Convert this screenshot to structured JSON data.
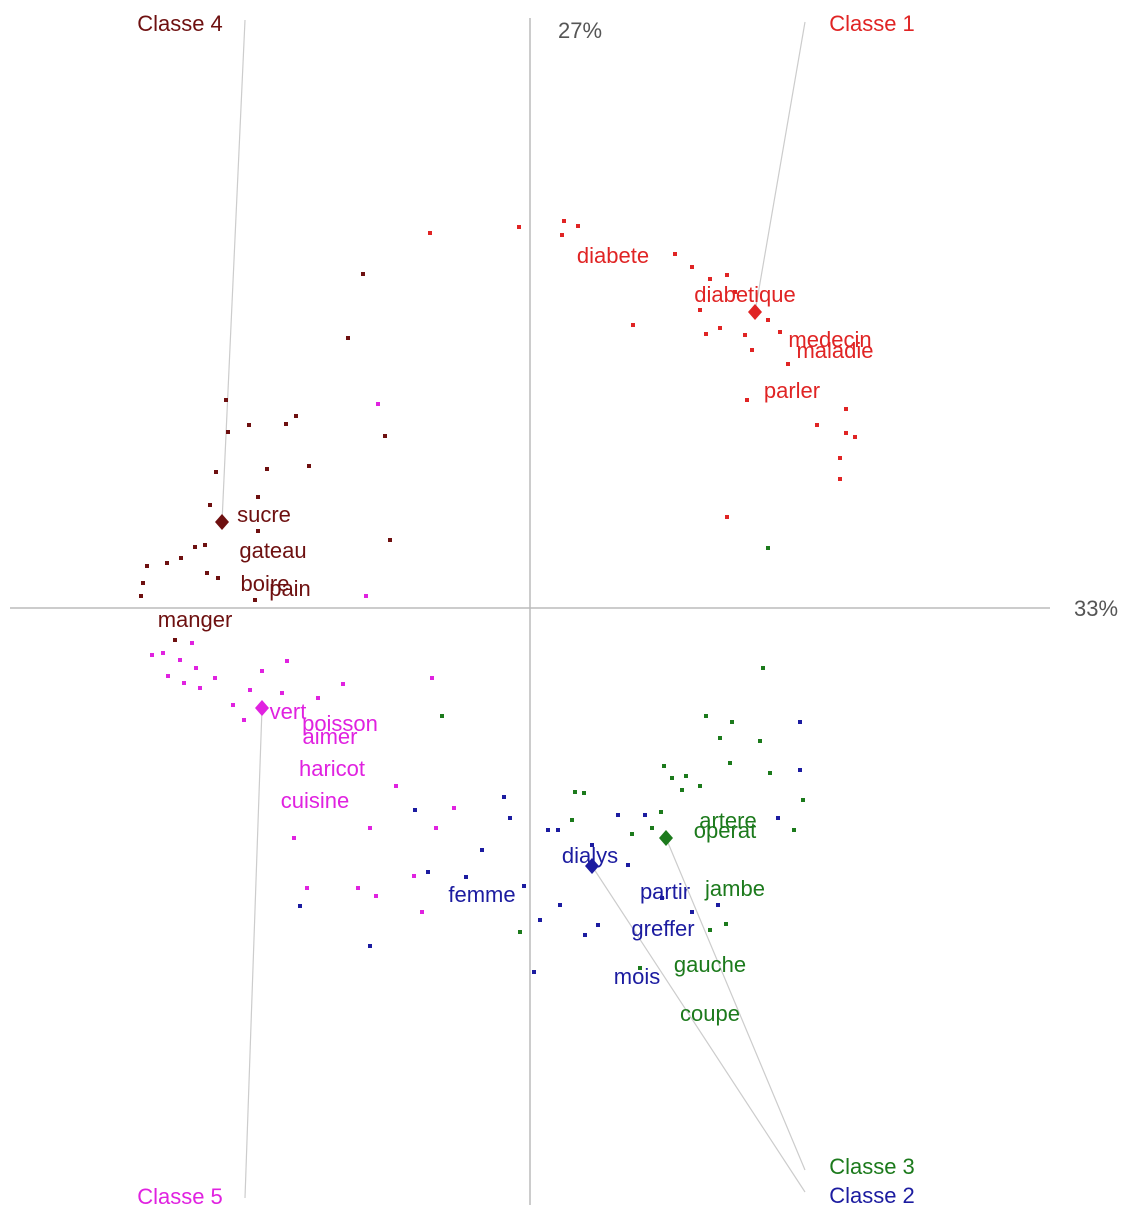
{
  "chart_data": {
    "type": "scatter",
    "xlabel": "33%",
    "ylabel": "27%",
    "xlim": [
      -5.2,
      5.2
    ],
    "ylim": [
      -5.97,
      5.9
    ],
    "series": [
      {
        "name": "Classe 1",
        "color": "#e02424",
        "centroid": [
          2.25,
          2.96
        ],
        "words": [
          {
            "text": "diabete",
            "x": 0.83,
            "y": 3.51
          },
          {
            "text": "diabetique",
            "x": 2.15,
            "y": 3.12
          },
          {
            "text": "medecin",
            "x": 3.0,
            "y": 2.67
          },
          {
            "text": "maladie",
            "x": 3.05,
            "y": 2.56
          },
          {
            "text": "parler",
            "x": 2.62,
            "y": 2.16
          }
        ],
        "x": [
          -1.0,
          -0.11,
          0.34,
          0.48,
          0.32,
          1.45,
          1.62,
          1.8,
          1.97,
          2.05,
          1.7,
          1.9,
          1.76,
          1.03,
          2.15,
          2.22,
          2.38,
          2.5,
          2.58,
          2.17,
          3.16,
          2.87,
          3.16,
          3.25,
          3.1,
          3.1,
          1.97
        ],
        "y": [
          3.75,
          3.81,
          3.87,
          3.82,
          3.73,
          3.54,
          3.41,
          3.29,
          3.33,
          3.16,
          2.98,
          2.8,
          2.74,
          2.83,
          2.73,
          2.58,
          2.88,
          2.76,
          2.44,
          2.08,
          1.99,
          1.83,
          1.75,
          1.71,
          1.5,
          1.29,
          0.91
        ]
      },
      {
        "name": "Classe 2",
        "color": "#1c1ca0",
        "centroid": [
          0.62,
          -2.58
        ],
        "words": [
          {
            "text": "dialys",
            "x": 0.6,
            "y": -2.49
          },
          {
            "text": "femme",
            "x": -0.48,
            "y": -2.88
          },
          {
            "text": "partir",
            "x": 1.35,
            "y": -2.85
          },
          {
            "text": "greffer",
            "x": 1.33,
            "y": -3.22
          },
          {
            "text": "mois",
            "x": 1.07,
            "y": -3.7
          }
        ],
        "x": [
          -0.26,
          -0.2,
          -0.48,
          -1.15,
          -1.02,
          -0.64,
          -0.06,
          0.1,
          0.3,
          0.55,
          0.68,
          0.04,
          0.18,
          0.28,
          0.62,
          0.88,
          1.15,
          0.98,
          1.32,
          1.62,
          1.88,
          2.48,
          2.7,
          2.7,
          -1.6,
          -2.3
        ],
        "y": [
          -1.89,
          -2.1,
          -2.42,
          -2.02,
          -2.64,
          -2.69,
          -2.78,
          -3.12,
          -2.97,
          -3.27,
          -3.17,
          -3.64,
          -2.22,
          -2.22,
          -2.37,
          -2.07,
          -2.07,
          -2.57,
          -2.9,
          -3.04,
          -2.97,
          -2.1,
          -1.14,
          -1.62,
          -3.38,
          -2.98
        ]
      },
      {
        "name": "Classe 3",
        "color": "#1c7a1c",
        "centroid": [
          1.36,
          -2.3
        ],
        "words": [
          {
            "text": "artere",
            "x": 1.98,
            "y": -2.14
          },
          {
            "text": "operat",
            "x": 1.95,
            "y": -2.24
          },
          {
            "text": "jambe",
            "x": 2.05,
            "y": -2.82
          },
          {
            "text": "gauche",
            "x": 1.8,
            "y": -3.58
          },
          {
            "text": "coupe",
            "x": 1.8,
            "y": -4.07
          }
        ],
        "x": [
          2.38,
          2.33,
          -0.88,
          1.76,
          2.02,
          1.9,
          2.3,
          1.34,
          1.42,
          1.56,
          1.7,
          1.52,
          2.0,
          2.4,
          2.73,
          2.64,
          1.31,
          1.22,
          1.02,
          0.45,
          0.54,
          0.42,
          -0.1,
          1.96,
          1.8,
          1.1
        ],
        "y": [
          0.6,
          -0.6,
          -1.08,
          -1.08,
          -1.14,
          -1.3,
          -1.33,
          -1.58,
          -1.7,
          -1.68,
          -1.78,
          -1.82,
          -1.55,
          -1.65,
          -1.92,
          -2.22,
          -2.04,
          -2.2,
          -2.26,
          -1.84,
          -1.85,
          -2.12,
          -3.24,
          -3.16,
          -3.22,
          -3.6
        ]
      },
      {
        "name": "Classe 4",
        "color": "#6e1010",
        "centroid": [
          -3.08,
          0.86
        ],
        "words": [
          {
            "text": "sucre",
            "x": -2.66,
            "y": 0.92
          },
          {
            "text": "gateau",
            "x": -2.57,
            "y": 0.56
          },
          {
            "text": "boire",
            "x": -2.65,
            "y": 0.23
          },
          {
            "text": "pain",
            "x": -2.4,
            "y": 0.18
          },
          {
            "text": "manger",
            "x": -3.35,
            "y": -0.13
          }
        ],
        "x": [
          -1.67,
          -1.82,
          -3.04,
          -2.81,
          -2.44,
          -2.34,
          -3.02,
          -1.45,
          -2.63,
          -2.21,
          -3.14,
          -3.2,
          -2.72,
          -3.25,
          -3.35,
          -3.49,
          -3.63,
          -3.83,
          -3.87,
          -3.89,
          -3.23,
          -3.12,
          -2.72,
          -1.4,
          -2.75,
          -3.55
        ],
        "y": [
          3.34,
          2.7,
          2.08,
          1.83,
          1.84,
          1.92,
          1.76,
          1.72,
          1.39,
          1.42,
          1.36,
          1.03,
          1.11,
          0.63,
          0.61,
          0.5,
          0.45,
          0.42,
          0.25,
          0.12,
          0.35,
          0.3,
          0.77,
          0.68,
          0.08,
          -0.32
        ]
      },
      {
        "name": "Classe 5",
        "color": "#e022e0",
        "centroid": [
          -2.68,
          -1.0
        ],
        "words": [
          {
            "text": "vert",
            "x": -2.42,
            "y": -1.05
          },
          {
            "text": "poisson",
            "x": -1.9,
            "y": -1.17
          },
          {
            "text": "aimer",
            "x": -2.0,
            "y": -1.3
          },
          {
            "text": "haricot",
            "x": -1.98,
            "y": -1.62
          },
          {
            "text": "cuisine",
            "x": -2.15,
            "y": -1.94
          }
        ],
        "x": [
          -1.52,
          -1.64,
          -3.78,
          -3.67,
          -3.5,
          -3.38,
          -3.34,
          -3.62,
          -3.46,
          -3.3,
          -3.15,
          -2.68,
          -2.43,
          -2.8,
          -2.97,
          -2.86,
          -2.48,
          -2.12,
          -1.87,
          -0.98,
          -1.34,
          -0.76,
          -0.94,
          -1.6,
          -2.36,
          -2.23,
          -1.72,
          -1.54,
          -1.16,
          -1.08
        ],
        "y": [
          2.04,
          0.12,
          -0.47,
          -0.45,
          -0.52,
          -0.35,
          -0.6,
          -0.68,
          -0.75,
          -0.8,
          -0.7,
          -0.63,
          -0.53,
          -0.82,
          -0.97,
          -1.12,
          -0.85,
          -0.9,
          -0.76,
          -0.7,
          -1.78,
          -2.0,
          -2.2,
          -2.2,
          -2.3,
          -2.8,
          -2.8,
          -2.88,
          -2.68,
          -3.04
        ]
      }
    ]
  }
}
